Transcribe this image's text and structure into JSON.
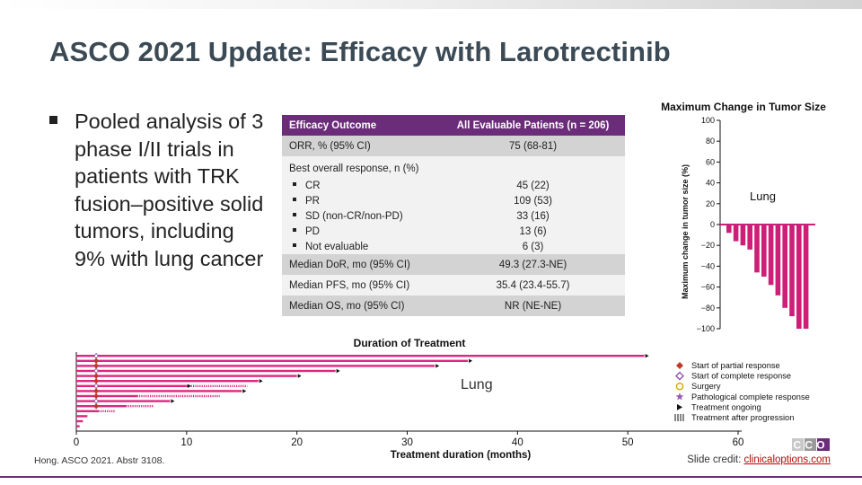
{
  "slide": {
    "title": "ASCO 2021 Update: Efficacy with Larotrectinib",
    "bullet": "Pooled analysis of 3 phase I/II trials in patients with TRK fusion–positive solid tumors, including 9% with lung cancer",
    "citation": "Hong. ASCO 2021. Abstr 3108.",
    "credit_label": "Slide credit: ",
    "credit_link": "clinicaloptions.com",
    "logo_text": "CCO",
    "accent_color": "#6b2c7a"
  },
  "table": {
    "header": [
      "Efficacy Outcome",
      "All Evaluable Patients (n = 206)"
    ],
    "orr_label": "ORR, % (95% CI)",
    "orr_value": "75 (68-81)",
    "bor_label": "Best overall response, n (%)",
    "bor_rows": [
      {
        "label": "CR",
        "value": "45 (22)"
      },
      {
        "label": "PR",
        "value": "109 (53)"
      },
      {
        "label": "SD (non-CR/non-PD)",
        "value": "33 (16)"
      },
      {
        "label": "PD",
        "value": "13 (6)"
      },
      {
        "label": "Not evaluable",
        "value": "6 (3)"
      }
    ],
    "dor_label": "Median DoR, mo (95% CI)",
    "dor_value": "49.3 (27.3-NE)",
    "pfs_label": "Median PFS, mo (95% CI)",
    "pfs_value": "35.4 (23.4-55.7)",
    "os_label": "Median OS, mo (95% CI)",
    "os_value": "NR (NE-NE)"
  },
  "chart_data": [
    {
      "type": "bar",
      "title": "Maximum Change in Tumor Size",
      "ylabel": "Maximum change in tumor size (%)",
      "annotation": "Lung",
      "ylim": [
        -100,
        100
      ],
      "yticks": [
        100,
        80,
        60,
        40,
        20,
        0,
        -20,
        -40,
        -60,
        -80,
        -100
      ],
      "values": [
        -8,
        -16,
        -20,
        -24,
        -46,
        -50,
        -58,
        -68,
        -80,
        -88,
        -100,
        -100
      ],
      "bar_color": "#cc1f78"
    },
    {
      "type": "bar",
      "orientation": "horizontal",
      "title": "Duration of Treatment",
      "xlabel": "Treatment duration (months)",
      "annotation": "Lung",
      "xlim": [
        0,
        60
      ],
      "xticks": [
        0,
        10,
        20,
        30,
        40,
        50,
        60
      ],
      "bar_color": "#e0257f",
      "bars": [
        {
          "solid": 51.5,
          "dashed": 0
        },
        {
          "solid": 35.5,
          "dashed": 0
        },
        {
          "solid": 32.5,
          "dashed": 0
        },
        {
          "solid": 23.5,
          "dashed": 0
        },
        {
          "solid": 20.0,
          "dashed": 0
        },
        {
          "solid": 16.5,
          "dashed": 0
        },
        {
          "solid": 10.0,
          "dashed": 5.5
        },
        {
          "solid": 15.0,
          "dashed": 0
        },
        {
          "solid": 5.5,
          "dashed": 7.5
        },
        {
          "solid": 8.5,
          "dashed": 0
        },
        {
          "solid": 4.5,
          "dashed": 2.5
        },
        {
          "solid": 2.0,
          "dashed": 1.5
        },
        {
          "solid": 1.0,
          "dashed": 0
        },
        {
          "solid": 0.6,
          "dashed": 0
        },
        {
          "solid": 0.3,
          "dashed": 0
        }
      ],
      "legend": [
        {
          "label": "Start of partial response",
          "marker": "diamond-filled",
          "color": "#c0392b"
        },
        {
          "label": "Start of complete response",
          "marker": "diamond-open",
          "color": "#8e44ad"
        },
        {
          "label": "Surgery",
          "marker": "circle-open",
          "color": "#d4ac0d"
        },
        {
          "label": "Pathological complete response",
          "marker": "star",
          "color": "#9b59b6"
        },
        {
          "label": "Treatment ongoing",
          "marker": "arrow",
          "color": "#111111"
        },
        {
          "label": "Treatment after progression",
          "marker": "hatch",
          "color": "#111111"
        }
      ]
    }
  ]
}
